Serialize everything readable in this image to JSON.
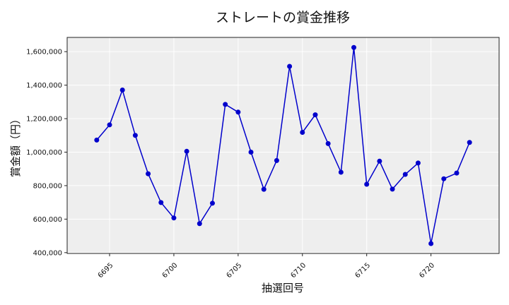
{
  "chart_data": {
    "type": "line",
    "title": "ストレートの賞金推移",
    "xlabel": "抽選回号",
    "ylabel": "賞金額（円）",
    "x": [
      6694,
      6695,
      6696,
      6697,
      6698,
      6699,
      6700,
      6701,
      6702,
      6703,
      6704,
      6705,
      6706,
      6707,
      6708,
      6709,
      6710,
      6711,
      6712,
      6713,
      6714,
      6715,
      6716,
      6717,
      6718,
      6719,
      6720,
      6721,
      6722,
      6723
    ],
    "series": [
      {
        "values": [
          1072000,
          1163000,
          1371000,
          1100000,
          871000,
          699000,
          607000,
          1005000,
          573000,
          695000,
          1285000,
          1239000,
          1000000,
          778000,
          950000,
          1512000,
          1118000,
          1223000,
          1051000,
          880000,
          1625000,
          808000,
          946000,
          779000,
          867000,
          935000,
          454000,
          841000,
          875000,
          1058000
        ],
        "color": "#0000cc"
      }
    ],
    "xlim": [
      6691.7,
      6725.3
    ],
    "ylim": [
      395000,
      1685000
    ],
    "x_ticks": [
      6695,
      6700,
      6705,
      6710,
      6715,
      6720
    ],
    "x_tick_labels": [
      "6695",
      "6700",
      "6705",
      "6710",
      "6715",
      "6720"
    ],
    "y_ticks": [
      400000,
      600000,
      800000,
      1000000,
      1200000,
      1400000,
      1600000
    ],
    "y_tick_labels": [
      "400,000",
      "600,000",
      "800,000",
      "1,000,000",
      "1,200,000",
      "1,400,000",
      "1,600,000"
    ],
    "grid": true,
    "background": "#eeeeee",
    "grid_color": "#ffffff"
  }
}
